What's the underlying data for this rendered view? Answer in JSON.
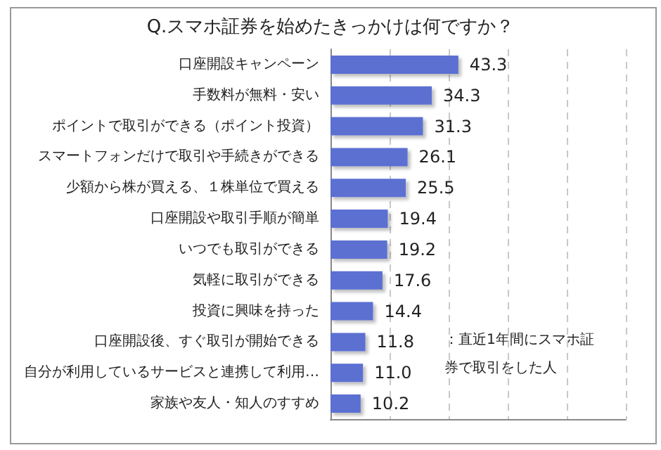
{
  "chart_data": {
    "type": "bar",
    "orientation": "horizontal",
    "title": "Q.スマホ証券を始めたきっかけは何ですか？",
    "categories": [
      "口座開設キャンペーン",
      "手数料が無料・安い",
      "ポイントで取引ができる（ポイント投資）",
      "スマートフォンだけで取引や手続きができる",
      "少額から株が買える、１株単位で買える",
      "口座開設や取引手順が簡単",
      "いつでも取引ができる",
      "気軽に取引ができる",
      "投資に興味を持った",
      "口座開設後、すぐ取引が開始できる",
      "自分が利用しているサービスと連携して利用…",
      "家族や友人・知人のすすめ"
    ],
    "values": [
      43.3,
      34.3,
      31.3,
      26.1,
      25.5,
      19.4,
      19.2,
      17.6,
      14.4,
      11.8,
      11.0,
      10.2
    ],
    "value_labels": [
      "43.3",
      "34.3",
      "31.3",
      "26.1",
      "25.5",
      "19.4",
      "19.2",
      "17.6",
      "14.4",
      "11.8",
      "11.0",
      "10.2"
    ],
    "color": "#5b6fd2",
    "xlim": [
      0,
      100
    ],
    "xticks": [
      {
        "value": 0,
        "label": null
      },
      {
        "value": 20,
        "label": null
      },
      {
        "value": 40,
        "label": null
      },
      {
        "value": 60,
        "label": null
      },
      {
        "value": 80,
        "label": null
      },
      {
        "value": 100,
        "label": null
      }
    ],
    "tick_labels": "y",
    "grid": "x",
    "annotations": [
      "：直近1年間にスマホ証券で取引をした人"
    ]
  }
}
